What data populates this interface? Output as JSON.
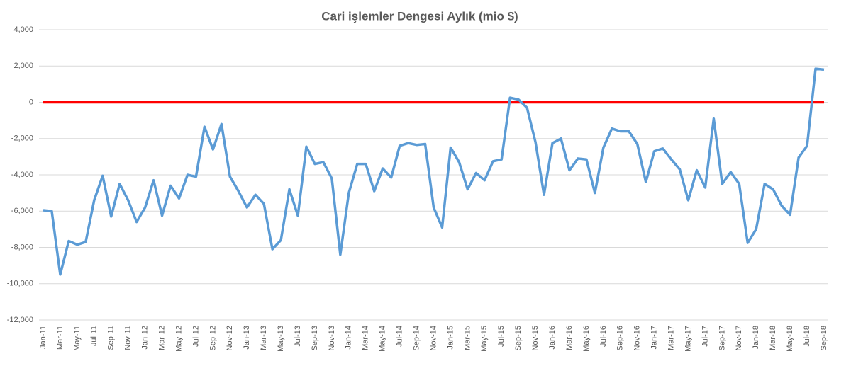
{
  "chart_data": {
    "type": "line",
    "title": "Cari işlemler Dengesi Aylık (mio $)",
    "categories": [
      "Jan-11",
      null,
      "Mar-11",
      null,
      "May-11",
      null,
      "Jul-11",
      null,
      "Sep-11",
      null,
      "Nov-11",
      null,
      "Jan-12",
      null,
      "Mar-12",
      null,
      "May-12",
      null,
      "Jul-12",
      null,
      "Sep-12",
      null,
      "Nov-12",
      null,
      "Jan-13",
      null,
      "Mar-13",
      null,
      "May-13",
      null,
      "Jul-13",
      null,
      "Sep-13",
      null,
      "Nov-13",
      null,
      "Jan-14",
      null,
      "Mar-14",
      null,
      "May-14",
      null,
      "Jul-14",
      null,
      "Sep-14",
      null,
      "Nov-14",
      null,
      "Jan-15",
      null,
      "Mar-15",
      null,
      "May-15",
      null,
      "Jul-15",
      null,
      "Sep-15",
      null,
      "Nov-15",
      null,
      "Jan-16",
      null,
      "Mar-16",
      null,
      "May-16",
      null,
      "Jul-16",
      null,
      "Sep-16",
      null,
      "Nov-16",
      null,
      "Jan-17",
      null,
      "Mar-17",
      null,
      "May-17",
      null,
      "Jul-17",
      null,
      "Sep-17",
      null,
      "Nov-17",
      null,
      "Jan-18",
      null,
      "Mar-18",
      null,
      "May-18",
      null,
      "Jul-18",
      null,
      "Sep-18"
    ],
    "series": [
      {
        "color": "#5b9bd5",
        "values": [
          -5950,
          -6000,
          -9500,
          -7650,
          -7850,
          -7700,
          -5400,
          -4050,
          -6300,
          -4500,
          -5400,
          -6600,
          -5800,
          -4300,
          -6250,
          -4600,
          -5300,
          -4000,
          -4100,
          -1350,
          -2600,
          -1200,
          -4100,
          -4900,
          -5800,
          -5100,
          -5600,
          -8100,
          -7600,
          -4800,
          -6250,
          -2450,
          -3400,
          -3300,
          -4200,
          -8400,
          -5000,
          -3400,
          -3400,
          -4900,
          -3650,
          -4150,
          -2400,
          -2250,
          -2350,
          -2300,
          -5800,
          -6900,
          -2500,
          -3300,
          -4800,
          -3900,
          -4300,
          -3250,
          -3150,
          250,
          150,
          -300,
          -2200,
          -5100,
          -2250,
          -2000,
          -3750,
          -3100,
          -3150,
          -5000,
          -2500,
          -1450,
          -1600,
          -1600,
          -2300,
          -4400,
          -2700,
          -2550,
          -3150,
          -3700,
          -5400,
          -3750,
          -4700,
          -900,
          -4500,
          -3850,
          -4500,
          -7750,
          -7000,
          -4500,
          -4800,
          -5700,
          -6200,
          -3050,
          -2400,
          1850,
          1800
        ]
      },
      {
        "color": "#ff0000",
        "values": [
          0,
          0,
          0,
          0,
          0,
          0,
          0,
          0,
          0,
          0,
          0,
          0,
          0,
          0,
          0,
          0,
          0,
          0,
          0,
          0,
          0,
          0,
          0,
          0,
          0,
          0,
          0,
          0,
          0,
          0,
          0,
          0,
          0,
          0,
          0,
          0,
          0,
          0,
          0,
          0,
          0,
          0,
          0,
          0,
          0,
          0,
          0,
          0,
          0,
          0,
          0,
          0,
          0,
          0,
          0,
          0,
          0,
          0,
          0,
          0,
          0,
          0,
          0,
          0,
          0,
          0,
          0,
          0,
          0,
          0,
          0,
          0,
          0,
          0,
          0,
          0,
          0,
          0,
          0,
          0,
          0,
          0,
          0,
          0,
          0,
          0,
          0,
          0,
          0,
          0,
          0,
          0,
          0
        ]
      }
    ],
    "ylim": [
      -12000,
      4000
    ],
    "yticks": [
      {
        "value": -12000,
        "label": "-12,000"
      },
      {
        "value": -10000,
        "label": "-10,000"
      },
      {
        "value": -8000,
        "label": "-8,000"
      },
      {
        "value": -6000,
        "label": "-6,000"
      },
      {
        "value": -4000,
        "label": "-4,000"
      },
      {
        "value": -2000,
        "label": "-2,000"
      },
      0,
      {
        "value": 2000,
        "label": "2,000"
      },
      {
        "value": 4000,
        "label": "4,000"
      }
    ],
    "grid": true
  }
}
